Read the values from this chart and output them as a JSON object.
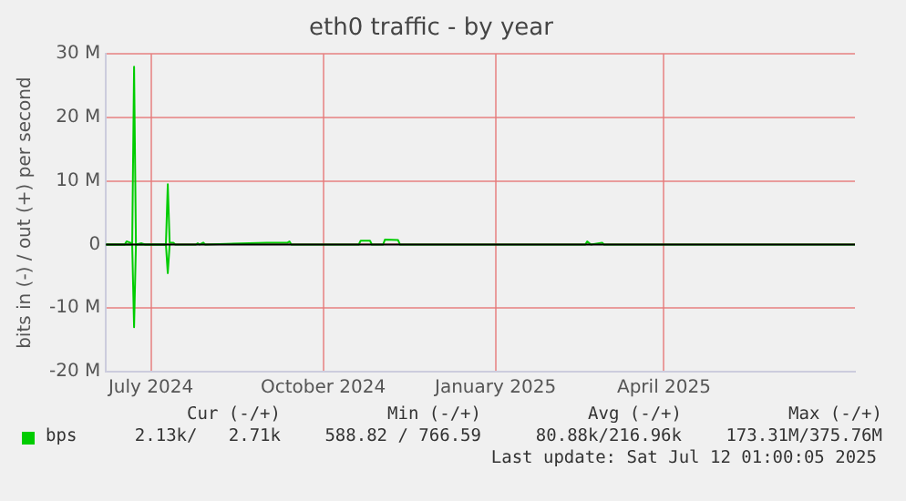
{
  "chart_data": {
    "type": "line",
    "title": "eth0 traffic - by year",
    "ylabel": "bits in (-) / out (+) per second",
    "xlim": [
      "2024-06-07",
      "2025-07-12"
    ],
    "xticks": [
      {
        "value": "2024-07-01",
        "label": "July 2024"
      },
      {
        "value": "2024-10-01",
        "label": "October 2024"
      },
      {
        "value": "2025-01-01",
        "label": "January 2025"
      },
      {
        "value": "2025-04-01",
        "label": "April 2025"
      }
    ],
    "ylim": [
      -20000000,
      30000000
    ],
    "yticks": [
      {
        "value": -20000000,
        "label": "-20 M"
      },
      {
        "value": -10000000,
        "label": "-10 M"
      },
      0,
      {
        "value": 10000000,
        "label": "10 M"
      },
      {
        "value": 20000000,
        "label": "20 M"
      },
      {
        "value": 30000000,
        "label": "30 M"
      }
    ],
    "grid": true,
    "legend": "bottom",
    "marker": "none",
    "line_style": "solid",
    "ref_lines": [
      {
        "axis": "y",
        "value": 0,
        "color": "#000000"
      }
    ],
    "series": [
      {
        "name": "bps",
        "color": "#00cc00",
        "x": [
          "2024-06-07",
          "2024-06-17",
          "2024-06-18",
          "2024-06-20",
          "2024-06-21",
          "2024-06-22",
          "2024-06-23",
          "2024-06-26",
          "2024-06-28",
          "2024-07-09",
          "2024-07-10",
          "2024-07-11",
          "2024-07-13",
          "2024-07-14",
          "2024-07-25",
          "2024-07-26",
          "2024-07-27",
          "2024-07-29",
          "2024-07-30",
          "2024-09-01",
          "2024-09-12",
          "2024-09-13",
          "2024-09-14",
          "2024-10-20",
          "2024-10-21",
          "2024-10-26",
          "2024-10-27",
          "2024-11-02",
          "2024-11-03",
          "2024-11-10",
          "2024-11-11",
          "2025-02-18",
          "2025-02-19",
          "2025-02-21",
          "2025-02-27",
          "2025-02-28",
          "2025-07-12"
        ],
        "values": [
          0,
          0,
          500000,
          300000,
          0,
          28000000,
          0,
          200000,
          0,
          0,
          9500000,
          300000,
          300000,
          0,
          0,
          200000,
          0,
          300000,
          0,
          300000,
          300000,
          500000,
          0,
          0,
          600000,
          600000,
          0,
          0,
          800000,
          700000,
          0,
          0,
          500000,
          0,
          300000,
          0,
          0
        ]
      },
      {
        "color": "#00cc00",
        "x": [
          "2024-06-07",
          "2024-06-21",
          "2024-06-22",
          "2024-06-23",
          "2024-07-09",
          "2024-07-10",
          "2024-07-11"
        ],
        "values": [
          0,
          0,
          -13000000,
          0,
          0,
          -4500000,
          0
        ]
      }
    ],
    "annotations": [
      "Cur (-/+)",
      "Min (-/+)",
      "Avg (-/+)",
      "Max (-/+)",
      "2.13k/   2.71k",
      "588.82 / 766.59",
      "80.88k/216.96k",
      "173.31M/375.76M",
      "Last update: Sat Jul 12 01:00:05 2025"
    ]
  }
}
